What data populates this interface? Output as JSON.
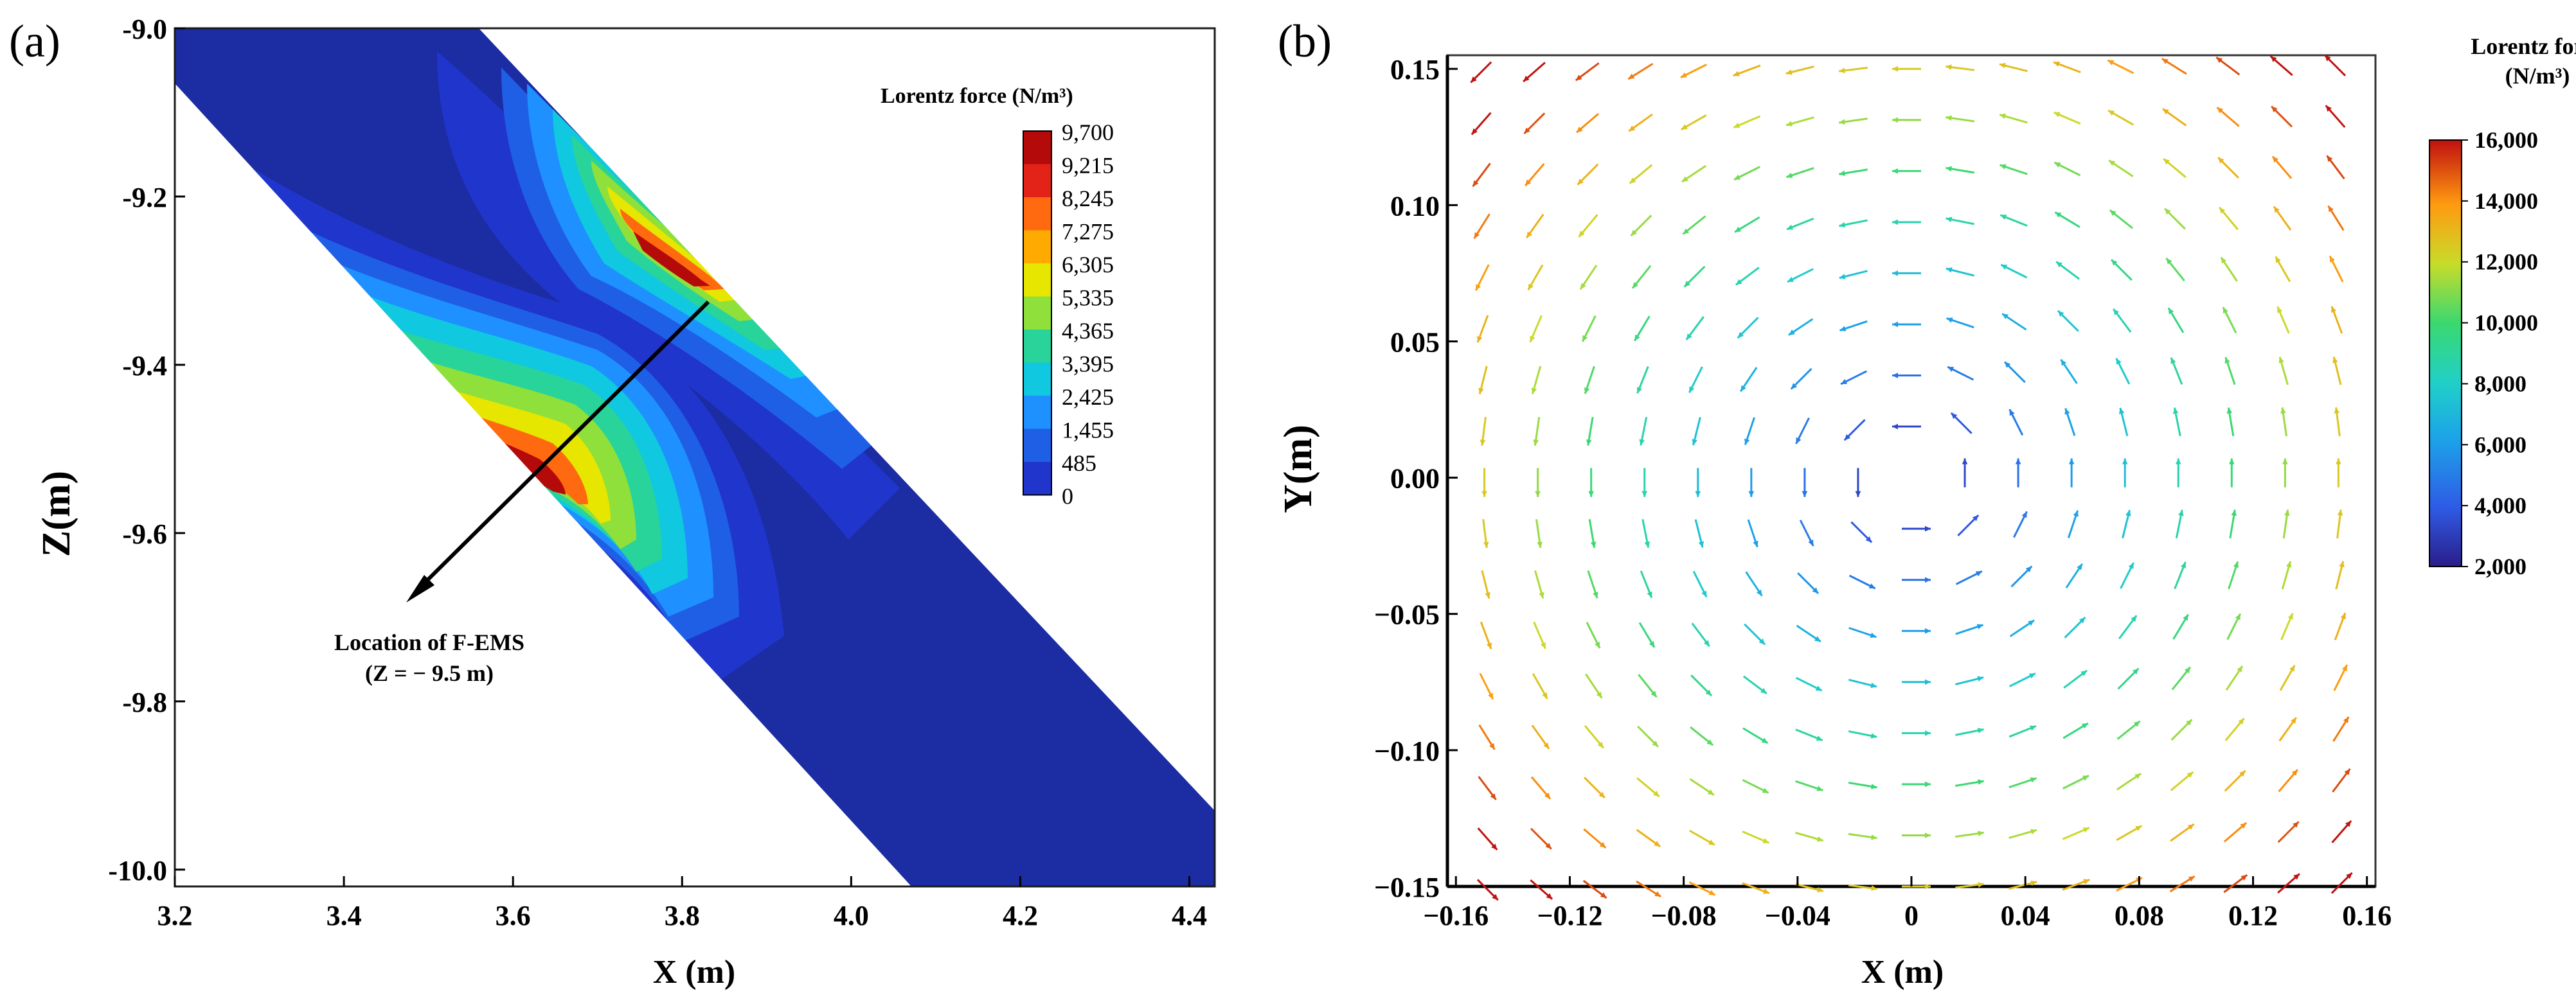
{
  "chart_data": [
    {
      "type": "heatmap",
      "panel_label": "(a)",
      "xlabel": "X (m)",
      "ylabel": "Z(m)",
      "xlim": [
        3.2,
        4.43
      ],
      "ylim": [
        -10.02,
        -9.0
      ],
      "x_ticks": [
        "3.2",
        "3.4",
        "3.6",
        "3.8",
        "4.0",
        "4.2",
        "4.4"
      ],
      "y_ticks": [
        "-9.0",
        "-9.2",
        "-9.4",
        "-9.6",
        "-9.8",
        "-10.0"
      ],
      "colorbar": {
        "title": "Lorentz force (N/m³)",
        "levels": [
          "9,700",
          "9,215",
          "8,245",
          "7,275",
          "6,305",
          "5,335",
          "4,365",
          "3,395",
          "2,425",
          "1,455",
          "485",
          "0"
        ],
        "colors": [
          "#b40a0a",
          "#e42318",
          "#ff6a10",
          "#ffaa00",
          "#e6e600",
          "#8fe03a",
          "#28d49a",
          "#10c8e0",
          "#1e90ff",
          "#1f5fe6",
          "#2035cc",
          "#1c2ca3"
        ]
      },
      "annotation": {
        "line1": "Location of F-EMS",
        "line2": "(Z = − 9.5 m)",
        "position": [
          3.82,
          -9.31
        ],
        "arrow_to": [
          3.48,
          -9.66
        ]
      }
    },
    {
      "type": "vector",
      "panel_label": "(b)",
      "xlabel": "X (m)",
      "ylabel": "Y(m)",
      "xlim": [
        -0.163,
        0.163
      ],
      "ylim": [
        -0.15,
        0.155
      ],
      "x_ticks": [
        "−0.16",
        "−0.12",
        "−0.08",
        "−0.04",
        "0",
        "0.04",
        "0.08",
        "0.12",
        "0.16"
      ],
      "y_ticks": [
        "0.15",
        "0.10",
        "0.05",
        "0.00",
        "−0.05",
        "−0.10",
        "−0.15"
      ],
      "grid_step": 0.01875,
      "field": "counter-clockwise vortex centred at (0, 0); magnitude increases radially",
      "colorbar": {
        "title_line1": "Lorentz force",
        "title_line2": "(N/m³)",
        "min": 2000,
        "max": 16000,
        "tick_labels": [
          "16,000",
          "14,000",
          "12,000",
          "10,000",
          "8,000",
          "6,000",
          "4,000",
          "2,000"
        ]
      }
    }
  ]
}
